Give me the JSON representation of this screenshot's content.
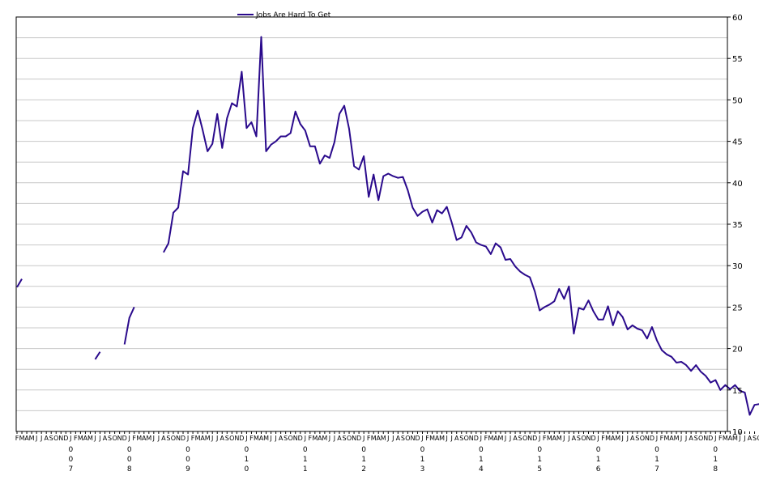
{
  "chart_data": {
    "type": "line",
    "title": "",
    "xlabel": "",
    "ylabel": "",
    "ylim": [
      10,
      60
    ],
    "yticks": [
      10,
      15,
      20,
      25,
      30,
      35,
      40,
      45,
      50,
      55,
      60
    ],
    "y_axis_side": "right",
    "grid": "horizontal",
    "legend": "top-center",
    "month_letters": [
      "J",
      "F",
      "M",
      "A",
      "M",
      "J",
      "J",
      "A",
      "S",
      "O",
      "N",
      "D"
    ],
    "year_ticks": [
      {
        "month": "2007-01",
        "digits": [
          "0",
          "0",
          "7"
        ]
      },
      {
        "month": "2008-01",
        "digits": [
          "0",
          "0",
          "8"
        ]
      },
      {
        "month": "2009-01",
        "digits": [
          "0",
          "0",
          "9"
        ]
      },
      {
        "month": "2010-01",
        "digits": [
          "0",
          "1",
          "0"
        ]
      },
      {
        "month": "2011-01",
        "digits": [
          "0",
          "1",
          "1"
        ]
      },
      {
        "month": "2012-01",
        "digits": [
          "0",
          "1",
          "2"
        ]
      },
      {
        "month": "2013-01",
        "digits": [
          "0",
          "1",
          "3"
        ]
      },
      {
        "month": "2014-01",
        "digits": [
          "0",
          "1",
          "4"
        ]
      },
      {
        "month": "2015-01",
        "digits": [
          "0",
          "1",
          "5"
        ]
      },
      {
        "month": "2016-01",
        "digits": [
          "0",
          "1",
          "6"
        ]
      },
      {
        "month": "2017-01",
        "digits": [
          "0",
          "1",
          "7"
        ]
      },
      {
        "month": "2018-01",
        "digits": [
          "0",
          "1",
          "8"
        ]
      }
    ],
    "x_start": "2006-02",
    "x_end": "2018-11",
    "series": [
      {
        "name": "Jobs Are Hard To Get",
        "color": "#2a0a8c",
        "values": [
          27.4,
          28.4,
          null,
          null,
          null,
          null,
          null,
          null,
          null,
          null,
          null,
          null,
          null,
          null,
          null,
          null,
          18.7,
          19.6,
          null,
          null,
          null,
          null,
          20.5,
          23.7,
          25.0,
          null,
          null,
          null,
          null,
          null,
          31.6,
          32.7,
          36.4,
          37.0,
          41.4,
          41.0,
          46.6,
          48.7,
          46.4,
          43.8,
          44.7,
          48.3,
          44.2,
          47.8,
          49.6,
          49.2,
          53.4,
          46.6,
          47.3,
          45.6,
          57.6,
          43.8,
          44.6,
          45.0,
          45.6,
          45.6,
          46.0,
          48.6,
          47.1,
          46.3,
          44.4,
          44.4,
          42.3,
          43.3,
          43.0,
          44.9,
          48.3,
          49.3,
          46.5,
          42.0,
          41.6,
          43.2,
          38.3,
          41.0,
          37.9,
          40.8,
          41.1,
          40.8,
          40.6,
          40.7,
          39.1,
          37.0,
          36.0,
          36.5,
          36.8,
          35.2,
          36.7,
          36.3,
          37.1,
          35.2,
          33.1,
          33.4,
          34.8,
          34.0,
          32.8,
          32.5,
          32.3,
          31.4,
          32.7,
          32.2,
          30.7,
          30.8,
          29.9,
          29.3,
          28.9,
          28.6,
          26.9,
          24.6,
          25.0,
          25.3,
          25.7,
          27.2,
          26.0,
          27.5,
          21.8,
          24.9,
          24.7,
          25.8,
          24.5,
          23.5,
          23.5,
          25.1,
          22.8,
          24.5,
          23.8,
          22.3,
          22.8,
          22.4,
          22.2,
          21.2,
          22.6,
          21.0,
          19.8,
          19.3,
          19.0,
          18.3,
          18.4,
          18.0,
          17.3,
          18.0,
          17.2,
          16.7,
          15.9,
          16.2,
          15.0,
          15.6,
          15.1,
          15.6,
          14.9,
          14.7,
          12.0,
          13.2,
          13.3,
          12.6
        ]
      }
    ]
  }
}
